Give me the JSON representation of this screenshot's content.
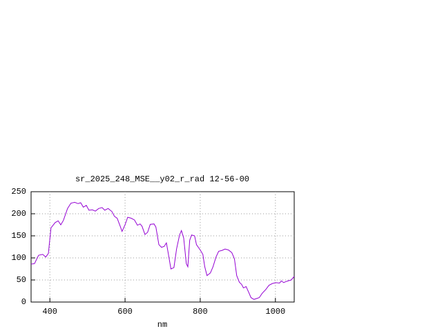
{
  "chart_data": {
    "type": "line",
    "title": "sr_2025_248_MSE__y02_r_rad 12-56-00",
    "xlabel": "nm",
    "x": [
      350,
      359,
      370,
      381,
      389,
      396,
      403,
      414,
      422,
      429,
      436,
      447,
      456,
      466,
      475,
      482,
      489,
      497,
      504,
      513,
      521,
      530,
      539,
      546,
      555,
      565,
      572,
      579,
      587,
      592,
      600,
      607,
      616,
      625,
      633,
      640,
      645,
      653,
      660,
      667,
      677,
      682,
      690,
      697,
      704,
      710,
      715,
      722,
      730,
      737,
      745,
      750,
      756,
      763,
      767,
      772,
      777,
      785,
      790,
      800,
      807,
      812,
      818,
      827,
      834,
      842,
      849,
      858,
      866,
      875,
      884,
      891,
      897,
      904,
      910,
      915,
      922,
      930,
      935,
      943,
      950,
      957,
      965,
      974,
      983,
      992,
      1001,
      1011,
      1016,
      1022,
      1027,
      1034,
      1042,
      1050
    ],
    "series": [
      {
        "color": "#9400d3",
        "values": [
          86,
          87,
          106,
          108,
          102,
          110,
          168,
          180,
          184,
          175,
          185,
          212,
          224,
          226,
          223,
          225,
          215,
          219,
          208,
          209,
          206,
          212,
          214,
          208,
          212,
          205,
          194,
          190,
          172,
          160,
          175,
          192,
          190,
          186,
          174,
          177,
          172,
          153,
          158,
          176,
          177,
          170,
          130,
          124,
          126,
          134,
          110,
          75,
          78,
          120,
          152,
          162,
          145,
          87,
          80,
          140,
          152,
          150,
          130,
          118,
          108,
          80,
          60,
          66,
          80,
          102,
          115,
          117,
          120,
          118,
          112,
          98,
          60,
          45,
          40,
          32,
          35,
          20,
          10,
          6,
          8,
          10,
          20,
          28,
          38,
          42,
          44,
          43,
          48,
          44,
          46,
          48,
          50,
          58
        ]
      }
    ],
    "xlim": [
      350,
      1050
    ],
    "xticks": [
      400,
      600,
      800,
      1000
    ],
    "ylim": [
      0,
      250
    ],
    "yticks": [
      0,
      50,
      100,
      150,
      200,
      250
    ],
    "grid": true
  }
}
